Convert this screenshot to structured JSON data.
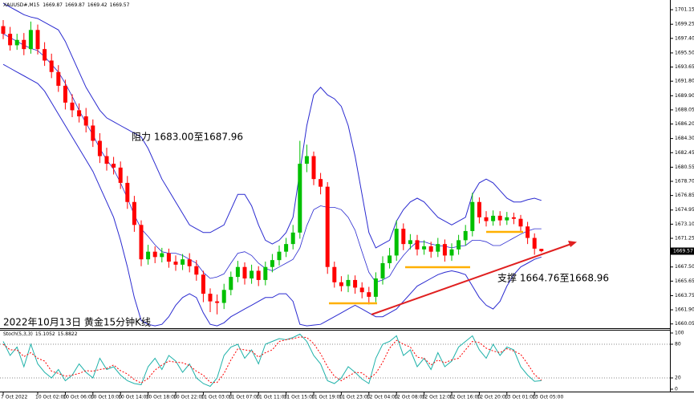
{
  "chart_data": [
    {
      "type": "candlestick",
      "symbol": "XAUUSD#,M15",
      "annotations": [
        "阻力 1683.00至1687.96",
        "支撑 1664.76至1668.96",
        "2022年10月13日 黄金15分钟K线"
      ],
      "categories": [
        "7 Oct 2022",
        null,
        null,
        null,
        null,
        "10 Oct 02:00",
        null,
        null,
        null,
        "10 Oct 06:00",
        null,
        null,
        null,
        "10 Oct 10:00",
        null,
        null,
        null,
        "10 Oct 14:00",
        null,
        null,
        null,
        "10 Oct 18:00",
        null,
        null,
        null,
        "10 Oct 22:00",
        null,
        null,
        null,
        "11 Oct 03:00",
        null,
        null,
        null,
        "11 Oct 07:00",
        null,
        null,
        null,
        "11 Oct 11:00",
        null,
        null,
        null,
        "11 Oct 15:00",
        null,
        null,
        null,
        "11 Oct 19:00",
        null,
        null,
        null,
        "11 Oct 23:00",
        null,
        null,
        null,
        "12 Oct 04:00",
        null,
        null,
        null,
        "12 Oct 08:00",
        null,
        null,
        null,
        "12 Oct 12:00",
        null,
        null,
        null,
        "12 Oct 16:00",
        null,
        null,
        null,
        "12 Oct 20:00",
        null,
        null,
        null,
        "13 Oct 01:00",
        null,
        null,
        null,
        "13 Oct 05:00",
        null
      ],
      "open": [
        1699.0,
        1698.0,
        1696.5,
        1697.2,
        1696.0,
        1698.5,
        1696.0,
        1694.5,
        1693.0,
        1691.2,
        1689.0,
        1688.0,
        1687.2,
        1686.0,
        1684.0,
        1682.0,
        1681.0,
        1680.5,
        1678.5,
        1676.0,
        1673.0,
        1668.5,
        1669.5,
        1668.8,
        1669.3,
        1668.2,
        1667.8,
        1668.5,
        1667.6,
        1666.5,
        1664.0,
        1663.0,
        1662.8,
        1664.5,
        1666.2,
        1667.5,
        1666.0,
        1667.0,
        1665.8,
        1667.5,
        1668.4,
        1669.5,
        1670.5,
        1672.0,
        1681.0,
        1682.0,
        1679.0,
        1678.0,
        1667.5,
        1665.5,
        1665.0,
        1665.8,
        1664.8,
        1664.2,
        1663.6,
        1666.0,
        1668.0,
        1669.0,
        1672.5,
        1670.5,
        1671.0,
        1669.8,
        1670.2,
        1669.5,
        1670.5,
        1669.0,
        1669.8,
        1671.0,
        1672.2,
        1676.0,
        1674.0,
        1673.5,
        1674.2,
        1673.6,
        1674.0,
        1673.8,
        1672.8,
        1671.3,
        1669.87
      ],
      "high": [
        1699.8,
        1698.9,
        1698.0,
        1698.1,
        1699.6,
        1699.2,
        1696.9,
        1695.4,
        1693.9,
        1692.0,
        1690.1,
        1688.9,
        1688.3,
        1686.8,
        1685.0,
        1683.1,
        1681.9,
        1681.3,
        1679.4,
        1676.8,
        1673.6,
        1670.4,
        1670.2,
        1670.0,
        1669.9,
        1669.0,
        1669.2,
        1669.3,
        1668.4,
        1667.0,
        1664.7,
        1663.9,
        1665.3,
        1666.9,
        1668.3,
        1668.1,
        1667.8,
        1667.6,
        1668.2,
        1669.2,
        1670.3,
        1671.3,
        1673.0,
        1684.0,
        1683.5,
        1682.6,
        1679.8,
        1678.6,
        1668.2,
        1666.3,
        1666.5,
        1666.4,
        1665.5,
        1664.9,
        1666.8,
        1668.9,
        1670.0,
        1673.6,
        1673.2,
        1671.8,
        1671.7,
        1671.0,
        1670.8,
        1671.3,
        1671.1,
        1670.6,
        1671.7,
        1673.0,
        1677.2,
        1676.6,
        1674.8,
        1674.9,
        1674.8,
        1674.7,
        1674.6,
        1674.3,
        1673.4,
        1671.9,
        1669.87
      ],
      "low": [
        1697.3,
        1695.8,
        1695.9,
        1695.2,
        1695.4,
        1695.3,
        1693.8,
        1692.2,
        1690.4,
        1688.1,
        1687.1,
        1686.4,
        1685.1,
        1683.2,
        1681.1,
        1680.1,
        1679.6,
        1677.7,
        1675.1,
        1672.1,
        1667.6,
        1667.8,
        1668.0,
        1668.1,
        1667.4,
        1667.0,
        1667.1,
        1666.8,
        1665.7,
        1662.9,
        1661.6,
        1661.3,
        1662.0,
        1663.8,
        1665.5,
        1665.2,
        1665.3,
        1665.0,
        1665.1,
        1666.8,
        1667.7,
        1668.8,
        1669.8,
        1671.2,
        1679.9,
        1678.2,
        1677.0,
        1666.6,
        1664.8,
        1664.3,
        1664.2,
        1664.0,
        1663.4,
        1662.6,
        1662.9,
        1665.2,
        1667.3,
        1668.3,
        1669.7,
        1669.8,
        1669.0,
        1669.1,
        1668.7,
        1668.8,
        1668.2,
        1668.3,
        1669.1,
        1670.3,
        1671.5,
        1673.2,
        1672.8,
        1672.9,
        1672.9,
        1673.0,
        1673.1,
        1672.1,
        1670.5,
        1669.1,
        1669.42
      ],
      "close": [
        1698.0,
        1696.5,
        1697.2,
        1696.0,
        1698.5,
        1696.0,
        1694.5,
        1693.0,
        1691.2,
        1689.0,
        1688.0,
        1687.2,
        1686.0,
        1684.0,
        1682.0,
        1681.0,
        1680.5,
        1678.5,
        1676.0,
        1673.0,
        1668.5,
        1669.5,
        1668.8,
        1669.3,
        1668.2,
        1667.8,
        1668.5,
        1667.6,
        1666.5,
        1664.0,
        1663.0,
        1662.8,
        1664.5,
        1666.2,
        1667.5,
        1666.0,
        1667.0,
        1665.8,
        1667.5,
        1668.4,
        1669.5,
        1670.5,
        1672.0,
        1681.0,
        1682.0,
        1679.0,
        1678.0,
        1667.5,
        1665.5,
        1665.0,
        1665.8,
        1664.8,
        1664.2,
        1663.6,
        1666.0,
        1668.0,
        1669.0,
        1672.5,
        1670.5,
        1671.0,
        1669.8,
        1670.2,
        1669.5,
        1670.5,
        1669.0,
        1669.8,
        1671.0,
        1672.2,
        1676.0,
        1674.0,
        1673.5,
        1674.2,
        1673.6,
        1674.0,
        1673.8,
        1672.8,
        1671.3,
        1669.9,
        1669.57
      ],
      "bands": {
        "color": "#2a2ad0",
        "upper": [
          1702,
          1701.5,
          1701,
          1700.5,
          1700.2,
          1700,
          1699.5,
          1699,
          1698.5,
          1697,
          1695,
          1693,
          1691,
          1689.5,
          1688,
          1687,
          1686.5,
          1686,
          1685.5,
          1685,
          1684.5,
          1683,
          1681,
          1679,
          1677.5,
          1676,
          1674.5,
          1673,
          1672.5,
          1672,
          1672,
          1672.5,
          1673,
          1675,
          1677,
          1677,
          1675.5,
          1673,
          1671,
          1670.5,
          1671,
          1672,
          1674,
          1680,
          1686,
          1690,
          1691,
          1690,
          1689.5,
          1688.5,
          1686,
          1682,
          1677,
          1672,
          1670,
          1670.5,
          1671,
          1673.5,
          1675,
          1676,
          1676.5,
          1676,
          1675,
          1674,
          1673.5,
          1673,
          1673.5,
          1674,
          1677,
          1678.5,
          1679,
          1678.5,
          1677.5,
          1676.5,
          1676,
          1676,
          1676.3,
          1676.5,
          1676.2
        ],
        "middle": [
          1698,
          1697.5,
          1697,
          1696.5,
          1696.1,
          1695.8,
          1695,
          1694,
          1693,
          1691.5,
          1689.8,
          1688,
          1686.3,
          1684.8,
          1683,
          1681.5,
          1680.3,
          1678.5,
          1676.5,
          1674.3,
          1672.5,
          1671.5,
          1670.4,
          1669.5,
          1669.3,
          1669.3,
          1669,
          1668.5,
          1668,
          1666.8,
          1666,
          1666.2,
          1666.6,
          1668,
          1669.3,
          1669.5,
          1669,
          1668,
          1667.3,
          1667,
          1667.5,
          1668,
          1668.5,
          1670,
          1672.9,
          1675,
          1675.5,
          1675.3,
          1675.3,
          1675,
          1674,
          1672.3,
          1669.5,
          1666.8,
          1665.5,
          1665.8,
          1666.3,
          1667.8,
          1669,
          1670,
          1670.8,
          1670.8,
          1670.5,
          1670.3,
          1670.2,
          1670,
          1670.2,
          1670.3,
          1671,
          1671,
          1670.8,
          1670.3,
          1670.3,
          1670.8,
          1671.3,
          1671.8,
          1672.2,
          1672.5,
          1672.5
        ],
        "lower": [
          1694,
          1693.5,
          1693,
          1692.5,
          1692,
          1691.5,
          1690.5,
          1689,
          1687.5,
          1686,
          1684.5,
          1683,
          1681.5,
          1680,
          1678,
          1676,
          1674,
          1671,
          1667.5,
          1663.5,
          1660.5,
          1660,
          1659.8,
          1660,
          1661,
          1662.5,
          1663.5,
          1664,
          1663.5,
          1661.5,
          1660,
          1659.8,
          1660.2,
          1661,
          1661.5,
          1662,
          1662.5,
          1663,
          1663.5,
          1663.5,
          1664,
          1664,
          1663,
          1660,
          1659.8,
          1659.9,
          1660,
          1660.5,
          1661,
          1661.5,
          1662,
          1662.5,
          1662,
          1661.5,
          1661,
          1661,
          1661.5,
          1662,
          1663,
          1664,
          1665,
          1665.5,
          1666,
          1666.5,
          1666.8,
          1667,
          1666.8,
          1666.5,
          1665,
          1663.5,
          1662.5,
          1662,
          1663,
          1665,
          1666.5,
          1667.5,
          1668,
          1668.5,
          1668.8
        ]
      },
      "up_color": "#00c000",
      "down_color": "#ff0000",
      "ylim": [
        1659.6,
        1702.0
      ],
      "yticks": [
        1701.15,
        1699.25,
        {
          "value": 1697.4,
          "label": "1697.40"
        },
        {
          "value": 1695.5,
          "label": "1695.50"
        },
        1693.65,
        {
          "value": 1691.8,
          "label": "1691.80"
        },
        {
          "value": 1689.9,
          "label": "1689.90"
        },
        1688.05,
        {
          "value": 1686.2,
          "label": "1686.20"
        },
        {
          "value": 1684.3,
          "label": "1684.30"
        },
        1682.45,
        1680.55,
        {
          "value": 1678.7,
          "label": "1678.70"
        },
        1676.85,
        1674.95,
        {
          "value": 1673.1,
          "label": "1673.10"
        },
        1671.25,
        {
          "value": 1667.5,
          "label": "1667.50"
        },
        1665.65,
        1663.75,
        {
          "value": 1661.9,
          "label": "1661.90"
        },
        1660.05
      ]
    },
    {
      "type": "line",
      "title": "Stoch(5,3,3)",
      "series": [
        {
          "color": "#20b2aa",
          "dash": false,
          "values": [
            85,
            60,
            75,
            40,
            80,
            45,
            30,
            20,
            35,
            15,
            25,
            45,
            30,
            20,
            55,
            35,
            40,
            25,
            15,
            10,
            8,
            40,
            55,
            35,
            60,
            50,
            30,
            45,
            20,
            10,
            5,
            20,
            60,
            75,
            80,
            55,
            70,
            45,
            80,
            85,
            90,
            88,
            92,
            98,
            85,
            60,
            45,
            15,
            10,
            20,
            40,
            30,
            18,
            10,
            55,
            80,
            85,
            95,
            60,
            70,
            40,
            55,
            35,
            65,
            40,
            50,
            75,
            85,
            95,
            70,
            55,
            80,
            60,
            75,
            70,
            40,
            25,
            14,
            15.1052
          ]
        },
        {
          "color": "#ff0000",
          "dash": true,
          "values": [
            80,
            70,
            70,
            58,
            65,
            55,
            50,
            32,
            28,
            23,
            25,
            28,
            33,
            32,
            35,
            37,
            43,
            33,
            27,
            17,
            11,
            19,
            34,
            43,
            50,
            48,
            47,
            42,
            32,
            25,
            12,
            12,
            28,
            52,
            72,
            70,
            68,
            57,
            65,
            70,
            85,
            88,
            90,
            93,
            92,
            81,
            63,
            40,
            23,
            15,
            23,
            30,
            29,
            19,
            28,
            48,
            73,
            87,
            80,
            75,
            57,
            55,
            43,
            52,
            47,
            52,
            55,
            70,
            85,
            83,
            73,
            68,
            65,
            72,
            68,
            62,
            45,
            26,
            15.8822
          ]
        }
      ],
      "ylim": [
        0,
        100
      ],
      "yticks": [
        0,
        20,
        80,
        100
      ],
      "levels": [
        20,
        80
      ]
    }
  ]
}
